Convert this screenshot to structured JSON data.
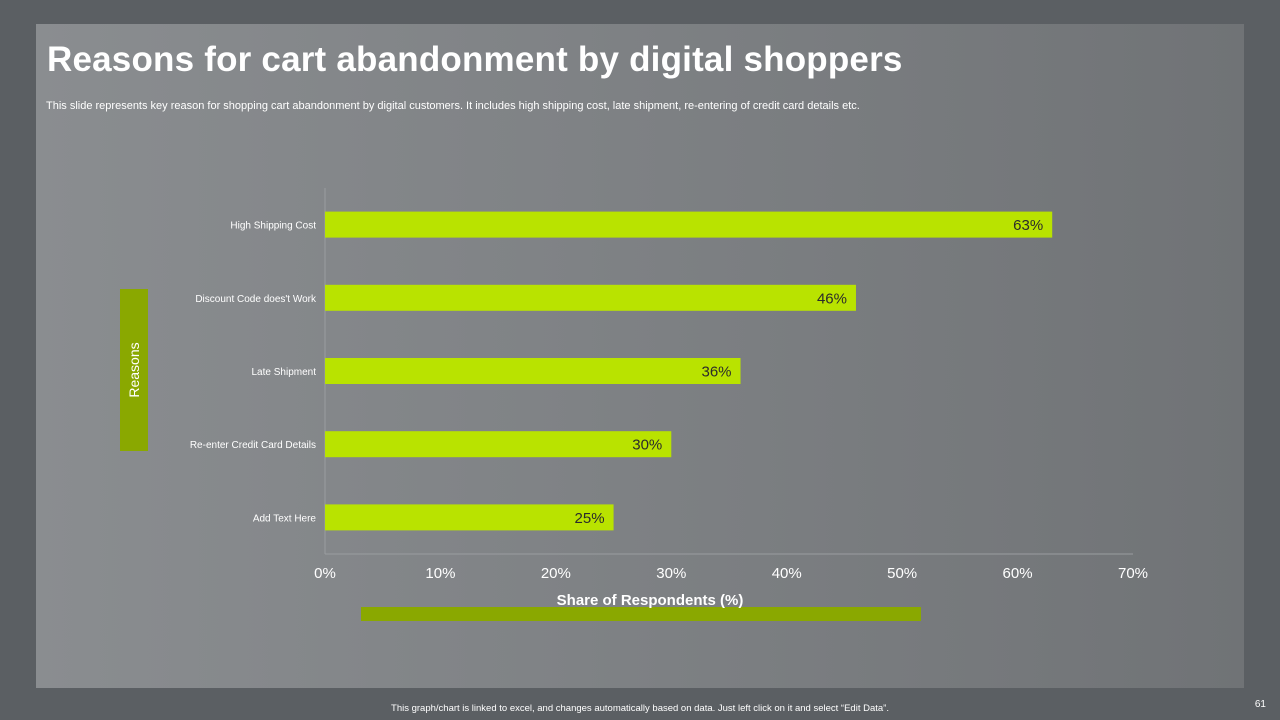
{
  "slide": {
    "title": "Reasons for cart abandonment by digital shoppers",
    "subtitle": "This slide represents  key reason for shopping cart abandonment by digital customers. It includes high shipping cost, late shipment, re-entering of credit card details etc.",
    "footer_note": "This graph/chart is linked to excel, and changes automatically based on data. Just left click on it and select “Edit Data”.",
    "page_number": "61"
  },
  "colors": {
    "bar": "#b9e300",
    "accent": "#8aa800",
    "text": "#ffffff",
    "data_label": "#2b2b2b",
    "axis": "#9a9da0"
  },
  "chart_data": {
    "type": "bar",
    "orientation": "horizontal",
    "title": "",
    "categories": [
      "High Shipping Cost",
      "Discount Code does't Work",
      "Late Shipment",
      "Re-enter Credit Card Details",
      "Add Text Here"
    ],
    "values": [
      63,
      46,
      36,
      30,
      25
    ],
    "data_labels": [
      "63%",
      "46%",
      "36%",
      "30%",
      "25%"
    ],
    "xlabel": "Share of Respondents (%)",
    "ylabel": "Reasons",
    "xlim": [
      0,
      70
    ],
    "xticks": [
      0,
      10,
      20,
      30,
      40,
      50,
      60,
      70
    ],
    "xtick_labels": [
      "0%",
      "10%",
      "20%",
      "30%",
      "40%",
      "50%",
      "60%",
      "70%"
    ],
    "grid": false,
    "legend": "none"
  }
}
